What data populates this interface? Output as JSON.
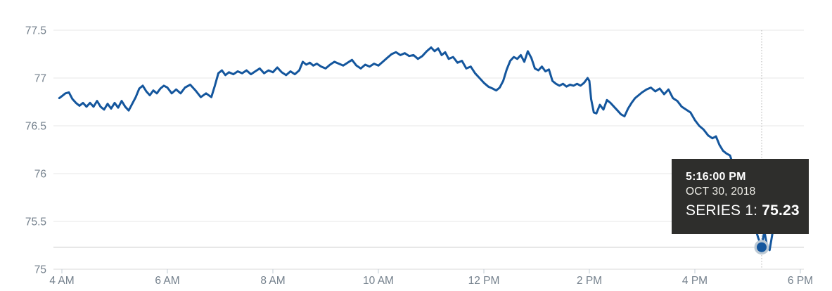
{
  "chart_data": {
    "type": "line",
    "title": "",
    "legend": "none",
    "grid": "horizontal",
    "x_axis": {
      "ticks": [
        {
          "label": "4 AM",
          "hour": 4
        },
        {
          "label": "6 AM",
          "hour": 6
        },
        {
          "label": "8 AM",
          "hour": 8
        },
        {
          "label": "10 AM",
          "hour": 10
        },
        {
          "label": "12 PM",
          "hour": 12
        },
        {
          "label": "2 PM",
          "hour": 14
        },
        {
          "label": "4 PM",
          "hour": 16
        },
        {
          "label": "6 PM",
          "hour": 18
        }
      ]
    },
    "y_axis": {
      "range": [
        75,
        77.5
      ],
      "ticks": [
        {
          "label": "77.5",
          "value": 77.5
        },
        {
          "label": "77",
          "value": 77
        },
        {
          "label": "76.5",
          "value": 76.5
        },
        {
          "label": "76",
          "value": 76
        },
        {
          "label": "75.5",
          "value": 75.5
        },
        {
          "label": "75",
          "value": 75
        }
      ]
    },
    "series": [
      {
        "name": "Series 1",
        "points": [
          [
            "03:57",
            76.79
          ],
          [
            "04:00",
            76.81
          ],
          [
            "04:04",
            76.84
          ],
          [
            "04:08",
            76.85
          ],
          [
            "04:12",
            76.78
          ],
          [
            "04:16",
            76.74
          ],
          [
            "04:20",
            76.71
          ],
          [
            "04:24",
            76.74
          ],
          [
            "04:28",
            76.7
          ],
          [
            "04:32",
            76.74
          ],
          [
            "04:36",
            76.7
          ],
          [
            "04:40",
            76.76
          ],
          [
            "04:44",
            76.7
          ],
          [
            "04:48",
            76.67
          ],
          [
            "04:52",
            76.73
          ],
          [
            "04:56",
            76.68
          ],
          [
            "05:00",
            76.74
          ],
          [
            "05:04",
            76.69
          ],
          [
            "05:08",
            76.76
          ],
          [
            "05:12",
            76.7
          ],
          [
            "05:16",
            76.66
          ],
          [
            "05:20",
            76.73
          ],
          [
            "05:24",
            76.8
          ],
          [
            "05:28",
            76.89
          ],
          [
            "05:32",
            76.92
          ],
          [
            "05:36",
            76.86
          ],
          [
            "05:40",
            76.82
          ],
          [
            "05:44",
            76.87
          ],
          [
            "05:48",
            76.84
          ],
          [
            "05:52",
            76.89
          ],
          [
            "05:56",
            76.92
          ],
          [
            "06:00",
            76.9
          ],
          [
            "06:05",
            76.84
          ],
          [
            "06:10",
            76.88
          ],
          [
            "06:15",
            76.84
          ],
          [
            "06:20",
            76.9
          ],
          [
            "06:26",
            76.93
          ],
          [
            "06:32",
            76.87
          ],
          [
            "06:38",
            76.8
          ],
          [
            "06:44",
            76.84
          ],
          [
            "06:50",
            76.8
          ],
          [
            "06:54",
            76.92
          ],
          [
            "06:58",
            77.05
          ],
          [
            "07:02",
            77.08
          ],
          [
            "07:06",
            77.03
          ],
          [
            "07:10",
            77.06
          ],
          [
            "07:15",
            77.04
          ],
          [
            "07:20",
            77.07
          ],
          [
            "07:25",
            77.05
          ],
          [
            "07:30",
            77.08
          ],
          [
            "07:35",
            77.04
          ],
          [
            "07:40",
            77.07
          ],
          [
            "07:45",
            77.1
          ],
          [
            "07:50",
            77.05
          ],
          [
            "07:55",
            77.08
          ],
          [
            "08:00",
            77.06
          ],
          [
            "08:05",
            77.11
          ],
          [
            "08:10",
            77.06
          ],
          [
            "08:15",
            77.03
          ],
          [
            "08:20",
            77.07
          ],
          [
            "08:25",
            77.04
          ],
          [
            "08:30",
            77.08
          ],
          [
            "08:34",
            77.17
          ],
          [
            "08:38",
            77.14
          ],
          [
            "08:42",
            77.16
          ],
          [
            "08:46",
            77.13
          ],
          [
            "08:50",
            77.15
          ],
          [
            "08:55",
            77.12
          ],
          [
            "09:00",
            77.1
          ],
          [
            "09:05",
            77.14
          ],
          [
            "09:10",
            77.17
          ],
          [
            "09:15",
            77.15
          ],
          [
            "09:20",
            77.13
          ],
          [
            "09:25",
            77.16
          ],
          [
            "09:30",
            77.19
          ],
          [
            "09:35",
            77.13
          ],
          [
            "09:40",
            77.1
          ],
          [
            "09:45",
            77.14
          ],
          [
            "09:50",
            77.12
          ],
          [
            "09:55",
            77.15
          ],
          [
            "10:00",
            77.13
          ],
          [
            "10:05",
            77.17
          ],
          [
            "10:10",
            77.21
          ],
          [
            "10:15",
            77.25
          ],
          [
            "10:20",
            77.27
          ],
          [
            "10:25",
            77.24
          ],
          [
            "10:30",
            77.26
          ],
          [
            "10:35",
            77.23
          ],
          [
            "10:40",
            77.24
          ],
          [
            "10:45",
            77.2
          ],
          [
            "10:50",
            77.23
          ],
          [
            "10:55",
            77.28
          ],
          [
            "11:00",
            77.32
          ],
          [
            "11:04",
            77.28
          ],
          [
            "11:08",
            77.31
          ],
          [
            "11:12",
            77.24
          ],
          [
            "11:16",
            77.27
          ],
          [
            "11:20",
            77.2
          ],
          [
            "11:25",
            77.22
          ],
          [
            "11:30",
            77.16
          ],
          [
            "11:35",
            77.18
          ],
          [
            "11:40",
            77.1
          ],
          [
            "11:45",
            77.12
          ],
          [
            "11:50",
            77.05
          ],
          [
            "11:55",
            77.0
          ],
          [
            "12:00",
            76.95
          ],
          [
            "12:05",
            76.91
          ],
          [
            "12:10",
            76.89
          ],
          [
            "12:14",
            76.87
          ],
          [
            "12:18",
            76.9
          ],
          [
            "12:22",
            76.97
          ],
          [
            "12:26",
            77.09
          ],
          [
            "12:30",
            77.18
          ],
          [
            "12:34",
            77.22
          ],
          [
            "12:38",
            77.2
          ],
          [
            "12:42",
            77.24
          ],
          [
            "12:46",
            77.17
          ],
          [
            "12:50",
            77.28
          ],
          [
            "12:54",
            77.21
          ],
          [
            "12:58",
            77.1
          ],
          [
            "13:02",
            77.08
          ],
          [
            "13:06",
            77.12
          ],
          [
            "13:10",
            77.07
          ],
          [
            "13:14",
            77.09
          ],
          [
            "13:18",
            76.97
          ],
          [
            "13:22",
            76.94
          ],
          [
            "13:26",
            76.92
          ],
          [
            "13:30",
            76.94
          ],
          [
            "13:34",
            76.91
          ],
          [
            "13:38",
            76.93
          ],
          [
            "13:42",
            76.92
          ],
          [
            "13:46",
            76.94
          ],
          [
            "13:50",
            76.92
          ],
          [
            "13:54",
            76.95
          ],
          [
            "13:58",
            77.0
          ],
          [
            "14:00",
            76.97
          ],
          [
            "14:02",
            76.78
          ],
          [
            "14:05",
            76.64
          ],
          [
            "14:08",
            76.63
          ],
          [
            "14:12",
            76.72
          ],
          [
            "14:16",
            76.67
          ],
          [
            "14:20",
            76.77
          ],
          [
            "14:24",
            76.74
          ],
          [
            "14:28",
            76.7
          ],
          [
            "14:32",
            76.66
          ],
          [
            "14:36",
            76.62
          ],
          [
            "14:40",
            76.6
          ],
          [
            "14:44",
            76.68
          ],
          [
            "14:48",
            76.74
          ],
          [
            "14:52",
            76.79
          ],
          [
            "14:56",
            76.82
          ],
          [
            "15:00",
            76.85
          ],
          [
            "15:05",
            76.88
          ],
          [
            "15:10",
            76.9
          ],
          [
            "15:15",
            76.86
          ],
          [
            "15:20",
            76.89
          ],
          [
            "15:25",
            76.83
          ],
          [
            "15:30",
            76.88
          ],
          [
            "15:35",
            76.79
          ],
          [
            "15:40",
            76.76
          ],
          [
            "15:45",
            76.7
          ],
          [
            "15:50",
            76.67
          ],
          [
            "15:55",
            76.64
          ],
          [
            "16:00",
            76.56
          ],
          [
            "16:05",
            76.5
          ],
          [
            "16:10",
            76.46
          ],
          [
            "16:15",
            76.4
          ],
          [
            "16:20",
            76.37
          ],
          [
            "16:24",
            76.39
          ],
          [
            "16:28",
            76.3
          ],
          [
            "16:32",
            76.24
          ],
          [
            "16:36",
            76.21
          ],
          [
            "16:40",
            76.19
          ],
          [
            "16:44",
            76.08
          ],
          [
            "16:48",
            75.96
          ],
          [
            "16:52",
            75.86
          ],
          [
            "16:56",
            75.9
          ],
          [
            "17:00",
            75.72
          ],
          [
            "17:04",
            75.58
          ],
          [
            "17:08",
            75.45
          ],
          [
            "17:12",
            75.33
          ],
          [
            "17:16",
            75.23
          ],
          [
            "17:19",
            75.4
          ],
          [
            "17:22",
            75.25
          ],
          [
            "17:25",
            75.2
          ],
          [
            "17:28",
            75.36
          ],
          [
            "17:31",
            75.55
          ]
        ]
      }
    ]
  },
  "cursor": {
    "selected_time": "17:16",
    "selected_value": 75.23,
    "tooltip": {
      "time": "5:16:00 PM",
      "date": "OCT 30, 2018",
      "series_label": "SERIES 1:",
      "value": "75.23"
    }
  },
  "colors": {
    "line": "#14569d",
    "grid": "#e7e7e7",
    "axis_line": "#d9d9d9",
    "tick": "#c2ccd6",
    "axis_label": "#74808c",
    "crosshair_horizontal": "#c9c9c9",
    "crosshair_vertical": "#b0b0b0",
    "marker_fill": "#14569d",
    "marker_halo": "#bcc9d4",
    "tooltip_bg": "#2e2e2c",
    "tooltip_text": "#ffffff"
  }
}
